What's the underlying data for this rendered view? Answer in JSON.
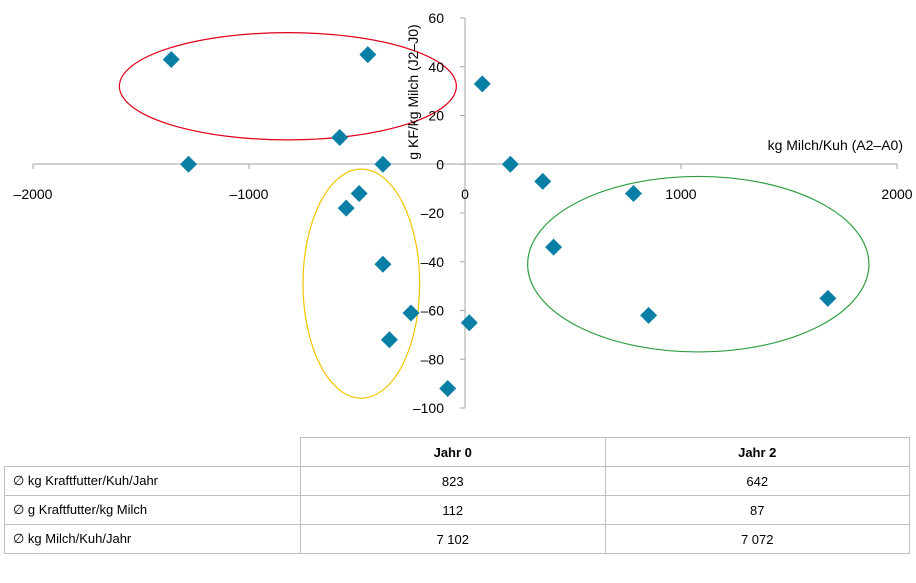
{
  "chart_data": {
    "type": "scatter",
    "xlabel": "kg Milch/Kuh (A2–A0)",
    "ylabel": "g KF/kg Milch (J2–J0)",
    "xlim": [
      -2000,
      2000
    ],
    "ylim": [
      -100,
      60
    ],
    "x_ticks": [
      "–2000",
      "–1000",
      "0",
      "1000",
      "2000"
    ],
    "y_ticks": [
      "60",
      "40",
      "20",
      "0",
      "–20",
      "–40",
      "–60",
      "–80",
      "–100"
    ],
    "grid": false,
    "marker": "diamond",
    "marker_color": "#0A7FA6",
    "points": [
      {
        "x": -1360,
        "y": 43
      },
      {
        "x": -1280,
        "y": 0
      },
      {
        "x": -450,
        "y": 45
      },
      {
        "x": -580,
        "y": 11
      },
      {
        "x": -380,
        "y": 0
      },
      {
        "x": -490,
        "y": -12
      },
      {
        "x": -550,
        "y": -18
      },
      {
        "x": -380,
        "y": -41
      },
      {
        "x": -250,
        "y": -61
      },
      {
        "x": -350,
        "y": -72
      },
      {
        "x": -80,
        "y": -92
      },
      {
        "x": 20,
        "y": -65
      },
      {
        "x": 80,
        "y": 33
      },
      {
        "x": 210,
        "y": 0
      },
      {
        "x": 360,
        "y": -7
      },
      {
        "x": 410,
        "y": -34
      },
      {
        "x": 780,
        "y": -12
      },
      {
        "x": 850,
        "y": -62
      },
      {
        "x": 1680,
        "y": -55
      }
    ],
    "groups": [
      {
        "color": "#E2001A",
        "cx": -820,
        "cy": 32,
        "rx": 780,
        "ry": 22
      },
      {
        "color": "#F2C500",
        "cx": -480,
        "cy": -49,
        "rx": 270,
        "ry": 47
      },
      {
        "color": "#2E9E44",
        "cx": 1080,
        "cy": -41,
        "rx": 790,
        "ry": 36
      }
    ]
  },
  "table": {
    "columns": [
      "Jahr 0",
      "Jahr 2"
    ],
    "rows": [
      {
        "label": "∅ kg Kraftfutter/Kuh/Jahr",
        "values": [
          "823",
          "642"
        ]
      },
      {
        "label": "∅ g Kraftfutter/kg Milch",
        "values": [
          "112",
          "87"
        ]
      },
      {
        "label": "∅ kg Milch/Kuh/Jahr",
        "values": [
          "7 102",
          "7 072"
        ]
      }
    ]
  }
}
